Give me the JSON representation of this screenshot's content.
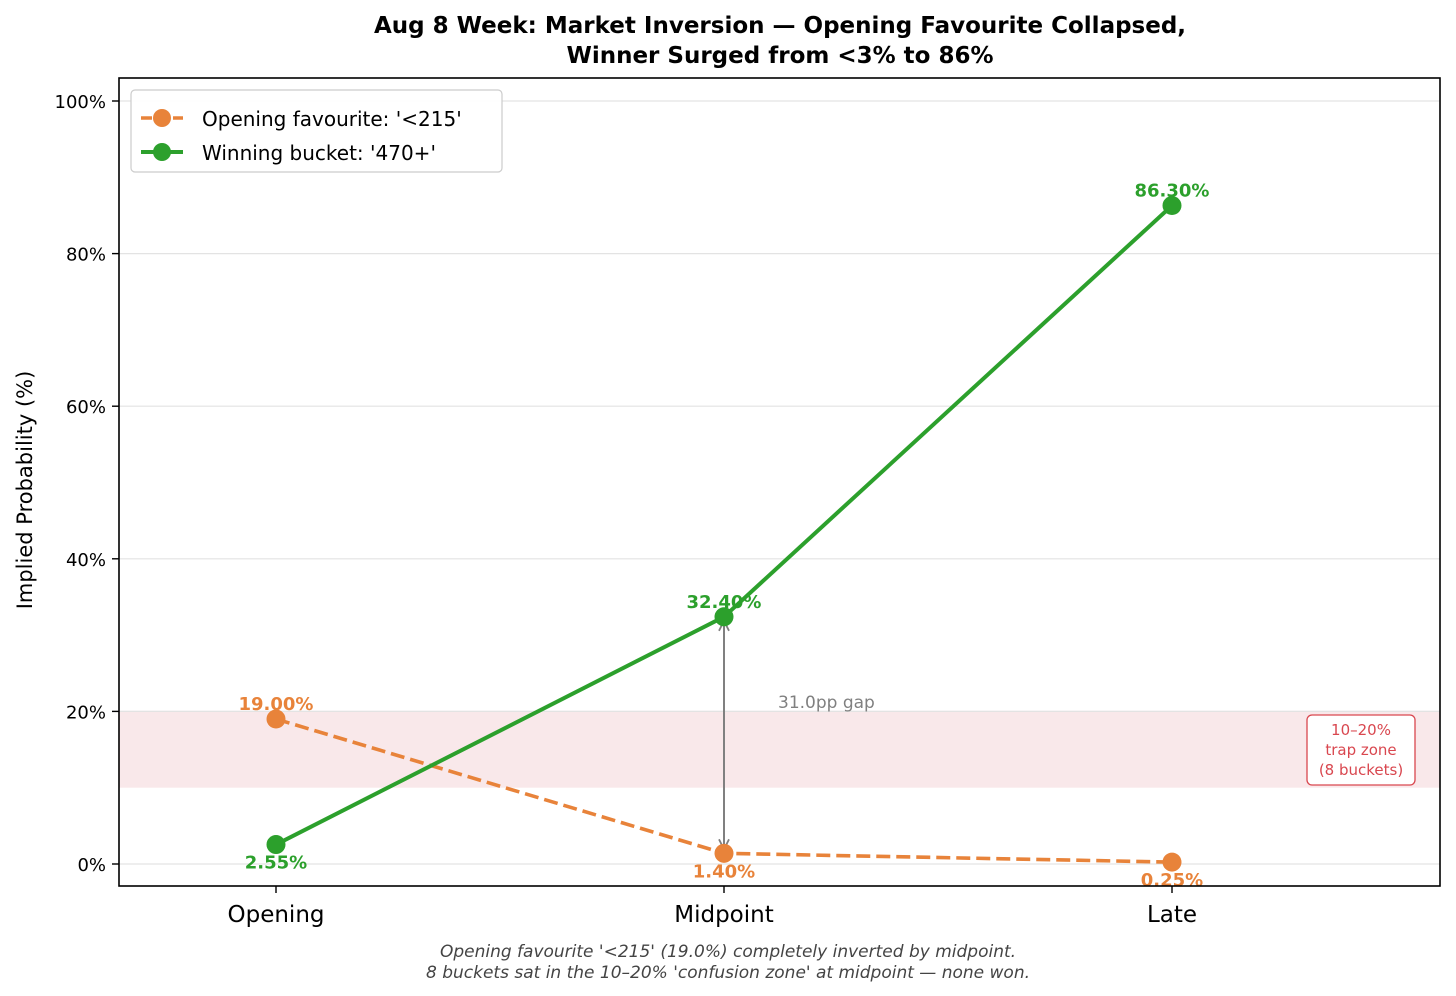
{
  "chart_data": {
    "type": "line",
    "title": [
      "Aug 8 Week: Market Inversion — Opening Favourite Collapsed,",
      "Winner Surged from <3% to 86%"
    ],
    "ylabel": "Implied Probability (%)",
    "xlabel": "",
    "categories": [
      "Opening",
      "Midpoint",
      "Late"
    ],
    "ylim": [
      -3,
      100
    ],
    "yticks": [
      0,
      20,
      40,
      60,
      80,
      100
    ],
    "ytick_labels": [
      "0%",
      "20%",
      "40%",
      "60%",
      "80%",
      "100%"
    ],
    "grid": "horizontal",
    "legend_position": "top-left",
    "series": [
      {
        "name": "Opening favourite: '<215'",
        "values": [
          19.0,
          1.4,
          0.25
        ],
        "labels": [
          "19.00%",
          "1.40%",
          "0.25%"
        ],
        "label_side": [
          "above",
          "below",
          "below"
        ],
        "color": "#e8833a",
        "style": "dashed"
      },
      {
        "name": "Winning bucket: '470+'",
        "values": [
          2.55,
          32.4,
          86.3
        ],
        "labels": [
          "2.55%",
          "32.40%",
          "86.30%"
        ],
        "label_side": [
          "below",
          "above",
          "above"
        ],
        "color": "#2ca02c",
        "style": "solid"
      }
    ],
    "band": {
      "from": 10,
      "to": 20,
      "color": "#f9e8ea",
      "label_lines": [
        "10–20%",
        "trap zone",
        "(8 buckets)"
      ],
      "label_color": "#d9474f"
    },
    "gap_annotation": {
      "category": "Midpoint",
      "from": 1.4,
      "to": 32.4,
      "label": "31.0pp gap"
    },
    "footnote": [
      "Opening favourite '<215' (19.0%) completely inverted by midpoint.",
      "8 buckets sat in the 10–20% 'confusion zone' at midpoint — none won."
    ]
  }
}
